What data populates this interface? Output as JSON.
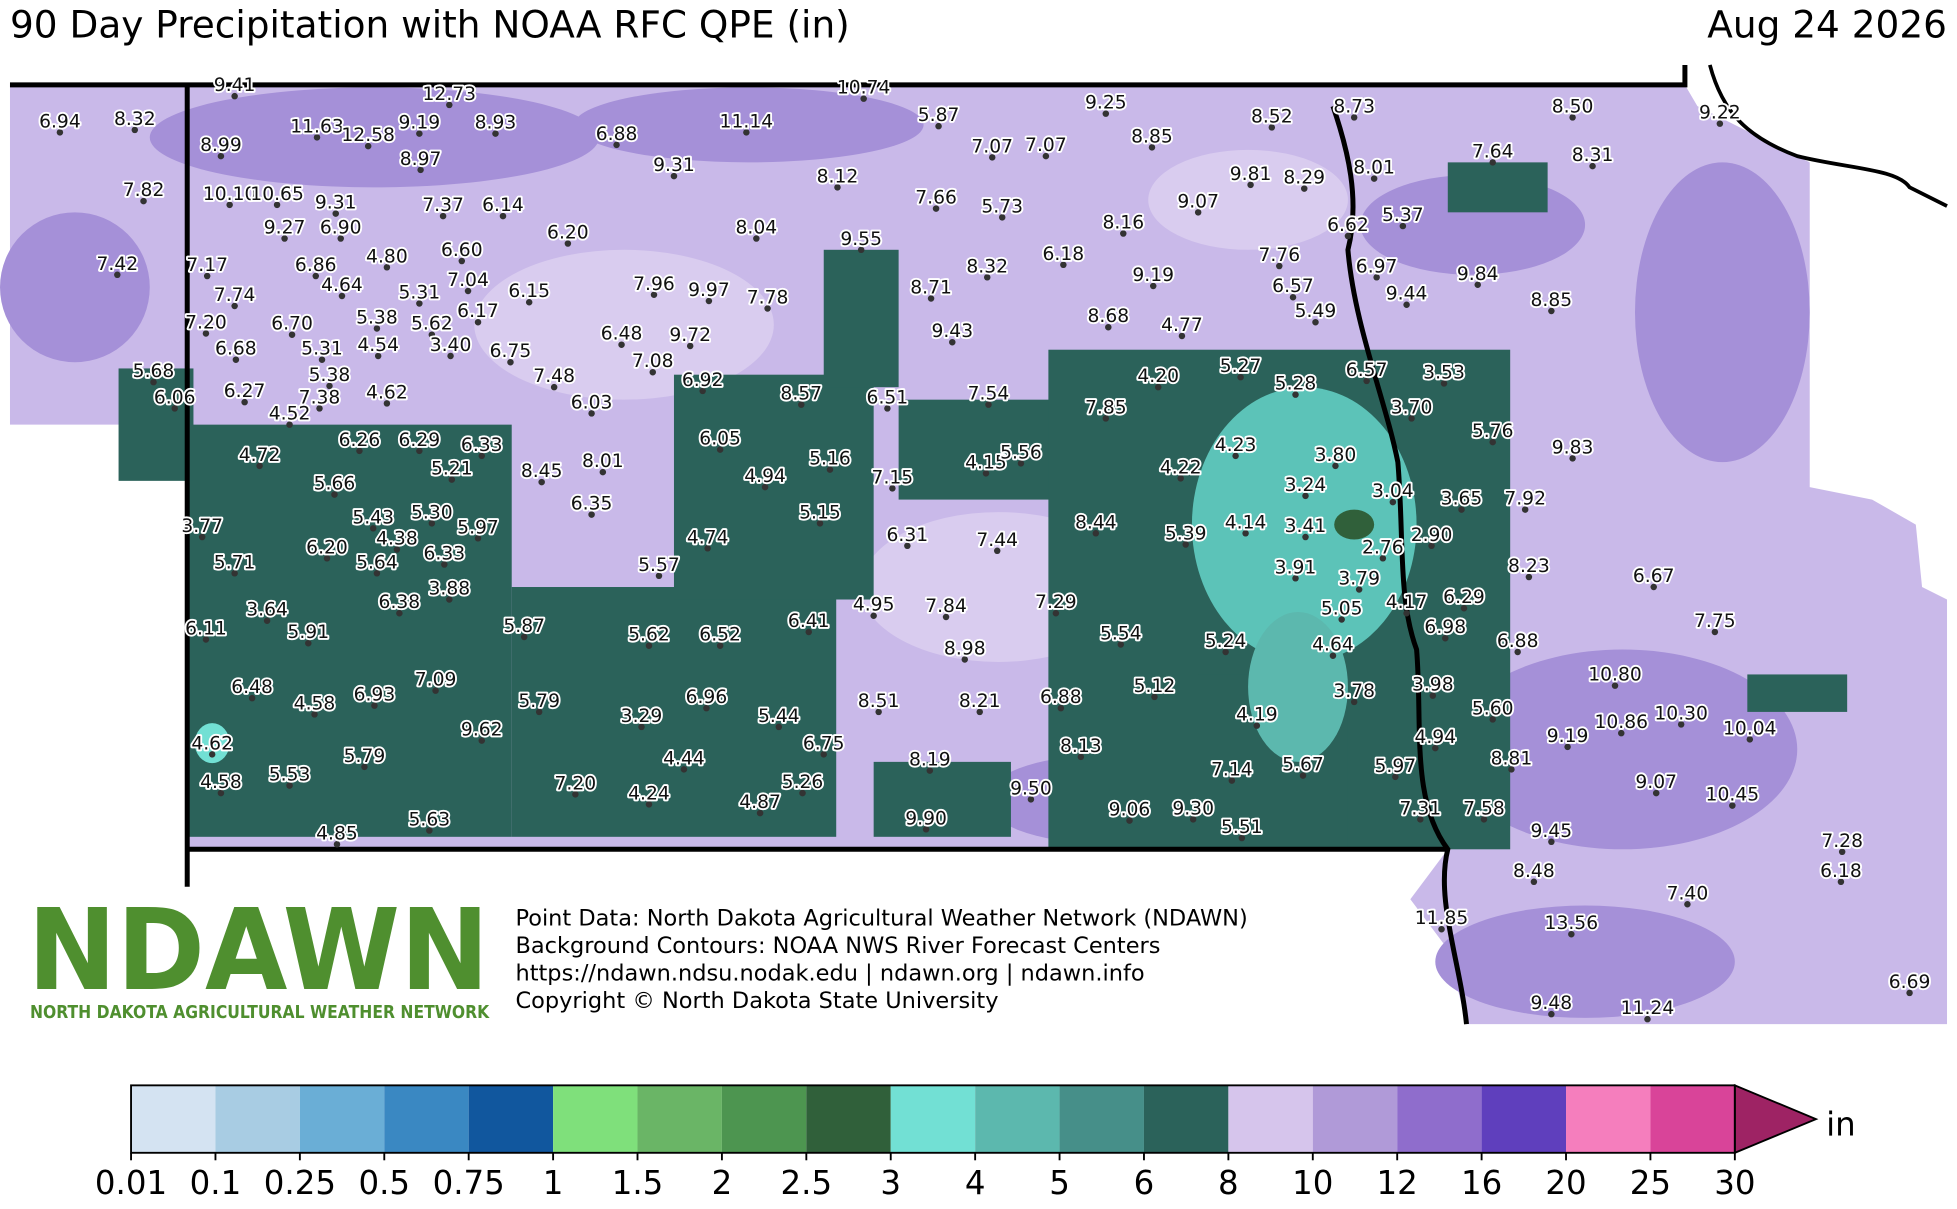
{
  "header": {
    "title": "90 Day Precipitation with NOAA RFC QPE (in)",
    "date": "Aug 24 2026"
  },
  "stations": [
    "6.94",
    "8.32",
    "9.41",
    "8.99",
    "11.63",
    "12.58",
    "12.73",
    "9.19",
    "8.93",
    "8.97",
    "7.82",
    "10.10",
    "10.65",
    "9.31",
    "7.37",
    "6.14",
    "9.27",
    "6.90",
    "6.20",
    "7.42",
    "7.17",
    "6.86",
    "4.80",
    "6.60",
    "4.64",
    "5.31",
    "7.04",
    "6.15",
    "7.74",
    "6.70",
    "5.38",
    "5.62",
    "6.17",
    "7.20",
    "6.68",
    "5.31",
    "4.54",
    "3.40",
    "6.75",
    "5.68",
    "6.06",
    "6.27",
    "5.38",
    "7.38",
    "4.62",
    "4.52",
    "7.48",
    "6.03",
    "6.48",
    "7.08",
    "9.72",
    "6.92",
    "7.96",
    "9.97",
    "7.78",
    "6.88",
    "11.14",
    "9.31",
    "10.74",
    "5.87",
    "8.12",
    "8.04",
    "9.55",
    "7.66",
    "5.73",
    "7.07",
    "7.07",
    "9.25",
    "8.85",
    "8.52",
    "8.73",
    "8.50",
    "9.22",
    "7.64",
    "8.31",
    "9.81",
    "8.29",
    "8.01",
    "9.07",
    "8.16",
    "6.62",
    "5.37",
    "6.18",
    "8.32",
    "8.71",
    "9.19",
    "7.76",
    "6.97",
    "9.84",
    "6.57",
    "9.44",
    "8.85",
    "9.43",
    "8.68",
    "4.77",
    "5.49",
    "5.27",
    "6.57",
    "3.53",
    "4.20",
    "5.28",
    "3.70",
    "8.57",
    "6.51",
    "7.54",
    "7.85",
    "5.76",
    "9.83",
    "6.05",
    "4.72",
    "6.26",
    "6.29",
    "6.33",
    "5.21",
    "5.66",
    "8.45",
    "8.01",
    "4.94",
    "5.16",
    "7.15",
    "4.15",
    "5.56",
    "4.23",
    "3.80",
    "4.22",
    "3.24",
    "3.04",
    "3.65",
    "7.92",
    "6.35",
    "5.15",
    "3.77",
    "5.43",
    "5.30",
    "5.97",
    "4.38",
    "6.33",
    "6.20",
    "5.64",
    "5.71",
    "3.88",
    "4.74",
    "6.31",
    "7.44",
    "8.44",
    "5.39",
    "4.14",
    "3.41",
    "2.76",
    "2.90",
    "5.57",
    "3.91",
    "3.79",
    "8.23",
    "6.67",
    "6.29",
    "4.17",
    "3.64",
    "6.38",
    "5.91",
    "6.11",
    "5.87",
    "5.62",
    "6.52",
    "6.41",
    "4.95",
    "7.84",
    "7.29",
    "5.05",
    "6.98",
    "7.75",
    "8.98",
    "5.54",
    "5.24",
    "4.64",
    "6.88",
    "6.48",
    "4.58",
    "6.93",
    "7.09",
    "5.79",
    "10.80",
    "3.29",
    "6.96",
    "5.44",
    "8.51",
    "8.21",
    "6.88",
    "5.12",
    "3.78",
    "3.98",
    "4.19",
    "5.60",
    "10.86",
    "10.30",
    "10.04",
    "9.62",
    "9.19",
    "4.62",
    "5.79",
    "4.44",
    "6.75",
    "8.13",
    "4.94",
    "8.81",
    "8.19",
    "4.58",
    "5.53",
    "7.20",
    "4.24",
    "5.26",
    "7.14",
    "5.67",
    "5.97",
    "9.07",
    "10.45",
    "4.87",
    "9.50",
    "9.06",
    "9.30",
    "7.31",
    "7.58",
    "9.90",
    "5.63",
    "4.85",
    "5.51",
    "9.45",
    "7.28",
    "6.18",
    "8.48",
    "7.40",
    "11.85",
    "13.56",
    "6.69",
    "9.48",
    "11.24"
  ],
  "logo": {
    "name": "NDAWN",
    "subtitle": "NORTH DAKOTA AGRICULTURAL WEATHER NETWORK"
  },
  "credits": [
    "Point Data: North Dakota Agricultural Weather Network (NDAWN)",
    "Background Contours: NOAA NWS River Forecast Centers",
    "https://ndawn.ndsu.nodak.edu | ndawn.org | ndawn.info",
    "Copyright © North Dakota State University"
  ],
  "colorbar": {
    "labels": [
      "0.01",
      "0.1",
      "0.25",
      "0.5",
      "0.75",
      "1",
      "1.5",
      "2",
      "2.5",
      "3",
      "4",
      "5",
      "6",
      "8",
      "10",
      "12",
      "16",
      "20",
      "25",
      "30"
    ],
    "colors": [
      "#d4e3f2",
      "#a8cce3",
      "#6aaed6",
      "#3a88c2",
      "#11579e",
      "#7fe07b",
      "#6ab566",
      "#4d9550",
      "#30603a",
      "#72e0d4",
      "#5cb8ae",
      "#468f89",
      "#2b625a",
      "#d6c5ec",
      "#b09ad8",
      "#8f6dcc",
      "#5f3fbd",
      "#f57ebd",
      "#d94499"
    ],
    "overflow_color": "#9e2364",
    "unit": "in"
  }
}
